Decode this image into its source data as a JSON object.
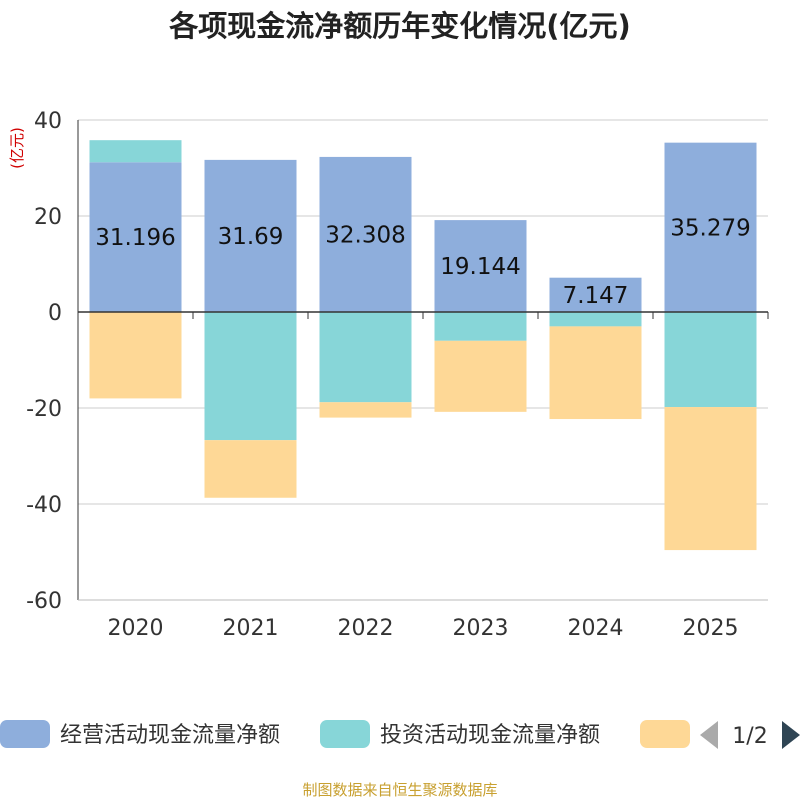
{
  "chart_data": {
    "type": "bar",
    "stacked": true,
    "title": "各项现金流净额历年变化情况(亿元)",
    "ylabel": "(亿元)",
    "ylim": [
      -60,
      40
    ],
    "yticks": [
      40,
      20,
      0,
      -20,
      -40,
      -60
    ],
    "grid": true,
    "categories": [
      "2020",
      "2021",
      "2022",
      "2023",
      "2024",
      "2025"
    ],
    "series": [
      {
        "name": "经营活动现金流量净额",
        "color": "#8eaedc",
        "values": [
          31.196,
          31.69,
          32.308,
          19.144,
          7.147,
          35.279
        ],
        "labels": [
          "31.196",
          "31.69",
          "32.308",
          "19.144",
          "7.147",
          "35.279"
        ]
      },
      {
        "name": "投资活动现金流量净额",
        "color": "#87d6d8",
        "values": [
          4.6,
          -26.7,
          -18.8,
          -6.0,
          -3.0,
          -19.8
        ]
      },
      {
        "name": "",
        "color": "#fed896",
        "values": [
          -18.0,
          -12.0,
          -3.2,
          -14.8,
          -19.3,
          -29.8
        ]
      }
    ],
    "legend": {
      "position": "bottom",
      "page": "1/2"
    }
  },
  "footer": {
    "source": "制图数据来自恒生聚源数据库"
  }
}
